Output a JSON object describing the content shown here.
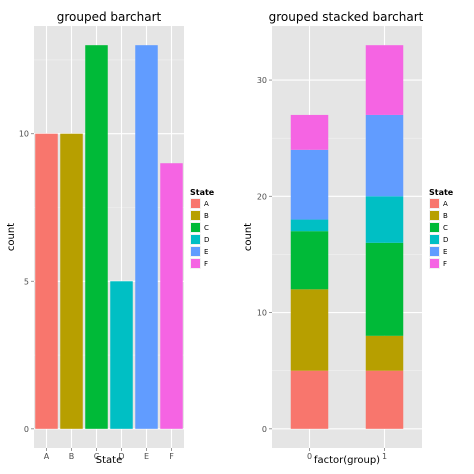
{
  "chart_data": [
    {
      "type": "bar",
      "title": "grouped barchart",
      "xlabel": "State",
      "ylabel": "count",
      "categories": [
        "A",
        "B",
        "C",
        "D",
        "E",
        "F"
      ],
      "values": [
        10,
        10,
        13,
        5,
        13,
        9
      ],
      "colors": [
        "#F8766D",
        "#B79F00",
        "#00BA38",
        "#00BFC4",
        "#619CFF",
        "#F564E3"
      ],
      "yticks": [
        0,
        5,
        10
      ],
      "ylim": [
        -0.65,
        13.65
      ],
      "grid": true,
      "legend": {
        "title": "State",
        "placement": "right",
        "items": [
          "A",
          "B",
          "C",
          "D",
          "E",
          "F"
        ]
      }
    },
    {
      "type": "bar",
      "stacked": true,
      "title": "grouped stacked barchart",
      "xlabel": "factor(group)",
      "ylabel": "count",
      "categories": [
        "0",
        "1"
      ],
      "series": [
        {
          "name": "A",
          "values": [
            5,
            5
          ]
        },
        {
          "name": "B",
          "values": [
            7,
            3
          ]
        },
        {
          "name": "C",
          "values": [
            5,
            8
          ]
        },
        {
          "name": "D",
          "values": [
            1,
            4
          ]
        },
        {
          "name": "E",
          "values": [
            6,
            7
          ]
        },
        {
          "name": "F",
          "values": [
            3,
            6
          ]
        }
      ],
      "colors": [
        "#F8766D",
        "#B79F00",
        "#00BA38",
        "#00BFC4",
        "#619CFF",
        "#F564E3"
      ],
      "yticks": [
        0,
        10,
        20,
        30
      ],
      "ylim": [
        -1.65,
        34.65
      ],
      "grid": true,
      "legend": {
        "title": "State",
        "placement": "right",
        "items": [
          "A",
          "B",
          "C",
          "D",
          "E",
          "F"
        ]
      }
    }
  ]
}
